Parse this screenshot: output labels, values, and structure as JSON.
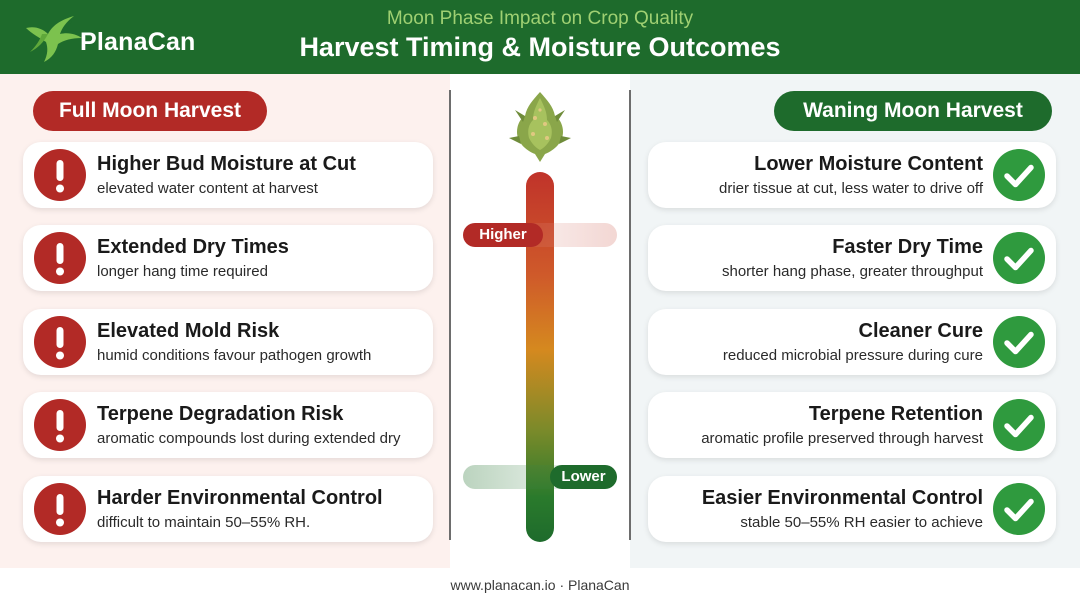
{
  "header": {
    "brand": "PlanaCan",
    "subtitle": "Moon Phase Impact on Crop Quality",
    "title": "Harvest Timing & Moisture Outcomes"
  },
  "left": {
    "heading": "Full Moon Harvest",
    "items": [
      {
        "title": "Higher Bud Moisture at Cut",
        "desc": "elevated water content at harvest"
      },
      {
        "title": "Extended Dry Times",
        "desc": "longer hang time required"
      },
      {
        "title": "Elevated Mold Risk",
        "desc": "humid conditions favour pathogen growth"
      },
      {
        "title": "Terpene Degradation Risk",
        "desc": "aromatic compounds lost during extended dry"
      },
      {
        "title": "Harder Environmental Control",
        "desc": "difficult to maintain 50–55% RH."
      }
    ]
  },
  "right": {
    "heading": "Waning Moon Harvest",
    "items": [
      {
        "title": "Lower Moisture Content",
        "desc": "drier tissue at cut, less water to drive off"
      },
      {
        "title": "Faster Dry Time",
        "desc": "shorter hang phase, greater throughput"
      },
      {
        "title": "Cleaner Cure",
        "desc": "reduced microbial pressure during cure"
      },
      {
        "title": "Terpene Retention",
        "desc": "aromatic profile preserved through harvest"
      },
      {
        "title": "Easier Environmental Control",
        "desc": "stable 50–55% RH easier to achieve"
      }
    ]
  },
  "gauge": {
    "high_label": "Higher",
    "low_label": "Lower"
  },
  "footer": {
    "text": "www.planacan.io · PlanaCan"
  },
  "icons": {
    "left_item": "exclamation-icon",
    "right_item": "checkmark-icon",
    "brand": "hummingbird-logo",
    "center": "cannabis-bud-icon"
  },
  "colors": {
    "brand_green": "#1e6b2c",
    "alert_red": "#b22a26",
    "check_green": "#2f9a3e",
    "subtitle_green": "#9fd072"
  }
}
